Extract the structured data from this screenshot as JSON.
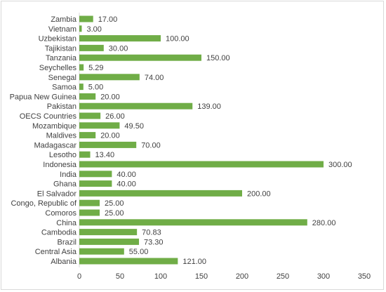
{
  "chart_data": {
    "type": "bar",
    "orientation": "horizontal",
    "title": "",
    "xlabel": "",
    "ylabel": "",
    "categories": [
      "Zambia",
      "Vietnam",
      "Uzbekistan",
      "Tajikistan",
      "Tanzania",
      "Seychelles",
      "Senegal",
      "Samoa",
      "Papua New Guinea",
      "Pakistan",
      "OECS Countries",
      "Mozambique",
      "Maldives",
      "Madagascar",
      "Lesotho",
      "Indonesia",
      "India",
      "Ghana",
      "El Salvador",
      "Congo, Republic of",
      "Comoros",
      "China",
      "Cambodia",
      "Brazil",
      "Central Asia",
      "Albania"
    ],
    "values": [
      17.0,
      3.0,
      100.0,
      30.0,
      150.0,
      5.29,
      74.0,
      5.0,
      20.0,
      139.0,
      26.0,
      49.5,
      20.0,
      70.0,
      13.4,
      300.0,
      40.0,
      40.0,
      200.0,
      25.0,
      25.0,
      280.0,
      70.83,
      73.3,
      55.0,
      121.0
    ],
    "value_labels": [
      "17.00",
      "3.00",
      "100.00",
      "30.00",
      "150.00",
      "5.29",
      "74.00",
      "5.00",
      "20.00",
      "139.00",
      "26.00",
      "49.50",
      "20.00",
      "70.00",
      "13.40",
      "300.00",
      "40.00",
      "40.00",
      "200.00",
      "25.00",
      "25.00",
      "280.00",
      "70.83",
      "73.30",
      "55.00",
      "121.00"
    ],
    "xlim": [
      0,
      350
    ],
    "xticks": [
      0,
      50,
      100,
      150,
      200,
      250,
      300,
      350
    ],
    "xtick_labels": [
      "0",
      "50",
      "100",
      "150",
      "200",
      "250",
      "300",
      "350"
    ],
    "grid": false,
    "legend": "none",
    "bar_color": "#70ad47",
    "axis_color": "#d9d9d9"
  }
}
